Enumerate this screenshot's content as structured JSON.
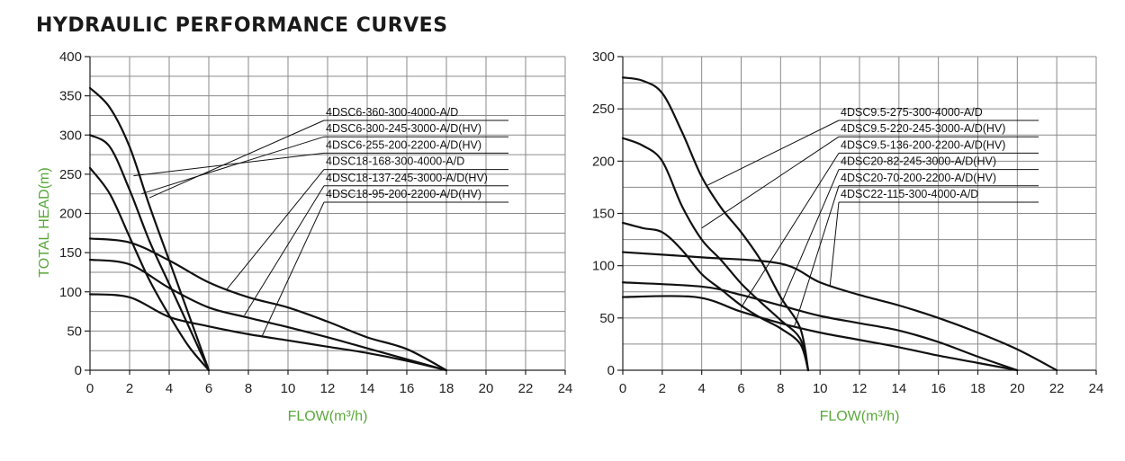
{
  "title": "HYDRAULIC PERFORMANCE CURVES",
  "chart_data": [
    {
      "type": "line",
      "xlabel": "FLOW(m³/h)",
      "ylabel": "TOTAL HEAD(m)",
      "xlim": [
        0,
        24
      ],
      "ylim": [
        0,
        400
      ],
      "xticks": [
        0,
        2,
        4,
        6,
        8,
        10,
        12,
        14,
        16,
        18,
        20,
        22,
        24
      ],
      "yticks": [
        0,
        50,
        100,
        150,
        200,
        250,
        300,
        350,
        400
      ],
      "grid": true,
      "series": [
        {
          "name": "4DSC6-360-300-4000-A/D",
          "x": [
            0,
            1,
            2,
            3,
            4,
            5,
            6
          ],
          "y": [
            360,
            335,
            285,
            210,
            140,
            70,
            0
          ]
        },
        {
          "name": "4DSC6-300-245-3000-A/D(HV)",
          "x": [
            0,
            1,
            2,
            3,
            4,
            5,
            6
          ],
          "y": [
            300,
            285,
            230,
            165,
            110,
            55,
            0
          ]
        },
        {
          "name": "4DSC6-255-200-2200-A/D(HV)",
          "x": [
            0,
            1,
            2,
            3,
            4,
            5,
            6
          ],
          "y": [
            258,
            225,
            170,
            115,
            70,
            30,
            0
          ]
        },
        {
          "name": "4DSC18-168-300-4000-A/D",
          "x": [
            0,
            2,
            4,
            6,
            8,
            10,
            12,
            14,
            16,
            18
          ],
          "y": [
            168,
            163,
            140,
            112,
            93,
            80,
            62,
            42,
            27,
            0
          ]
        },
        {
          "name": "4DSC18-137-245-3000-A/D(HV)",
          "x": [
            0,
            2,
            4,
            6,
            8,
            10,
            12,
            14,
            16,
            18
          ],
          "y": [
            141,
            135,
            105,
            80,
            67,
            55,
            42,
            28,
            14,
            0
          ]
        },
        {
          "name": "4DSC18-95-200-2200-A/D(HV)",
          "x": [
            0,
            2,
            4,
            6,
            8,
            10,
            12,
            14,
            16,
            18
          ],
          "y": [
            97,
            93,
            68,
            56,
            46,
            38,
            30,
            22,
            12,
            0
          ]
        }
      ]
    },
    {
      "type": "line",
      "xlabel": "FLOW(m³/h)",
      "ylabel": "",
      "xlim": [
        0,
        24
      ],
      "ylim": [
        0,
        300
      ],
      "xticks": [
        0,
        2,
        4,
        6,
        8,
        10,
        12,
        14,
        16,
        18,
        20,
        22,
        24
      ],
      "yticks": [
        0,
        50,
        100,
        150,
        200,
        250,
        300
      ],
      "grid": true,
      "series": [
        {
          "name": "4DSC9.5-275-300-4000-A/D",
          "x": [
            0,
            1,
            2,
            3,
            4,
            5,
            6,
            7,
            8,
            9,
            9.4
          ],
          "y": [
            280,
            277,
            265,
            228,
            185,
            155,
            132,
            105,
            70,
            40,
            0
          ]
        },
        {
          "name": "4DSC9.5-220-245-3000-A/D(HV)",
          "x": [
            0,
            1,
            2,
            3,
            4,
            5,
            6,
            7,
            8,
            9,
            9.4
          ],
          "y": [
            222,
            215,
            200,
            157,
            125,
            105,
            83,
            65,
            48,
            30,
            0
          ]
        },
        {
          "name": "4DSC9.5-136-200-2200-A/D(HV)",
          "x": [
            0,
            1,
            2,
            3,
            4,
            5,
            6,
            7,
            8,
            9,
            9.4
          ],
          "y": [
            141,
            136,
            132,
            115,
            92,
            77,
            62,
            50,
            40,
            25,
            0
          ]
        },
        {
          "name": "4DSC20-82-245-3000-A/D(HV)",
          "x": [
            0,
            4,
            6,
            8,
            10,
            12,
            14,
            16,
            18,
            20
          ],
          "y": [
            84,
            80,
            72,
            62,
            52,
            45,
            38,
            27,
            13,
            0
          ]
        },
        {
          "name": "4DSC20-70-200-2200-A/D(HV)",
          "x": [
            0,
            3.7,
            6,
            8,
            10,
            12,
            14,
            16,
            18,
            20
          ],
          "y": [
            70,
            70,
            56,
            45,
            36,
            29,
            22,
            14,
            7,
            0
          ]
        },
        {
          "name": "4DSC22-115-300-4000-A/D",
          "x": [
            0,
            4,
            8,
            10,
            12,
            14,
            16,
            18,
            20,
            22
          ],
          "y": [
            113,
            108,
            102,
            84,
            72,
            62,
            50,
            36,
            20,
            0
          ]
        }
      ]
    }
  ]
}
